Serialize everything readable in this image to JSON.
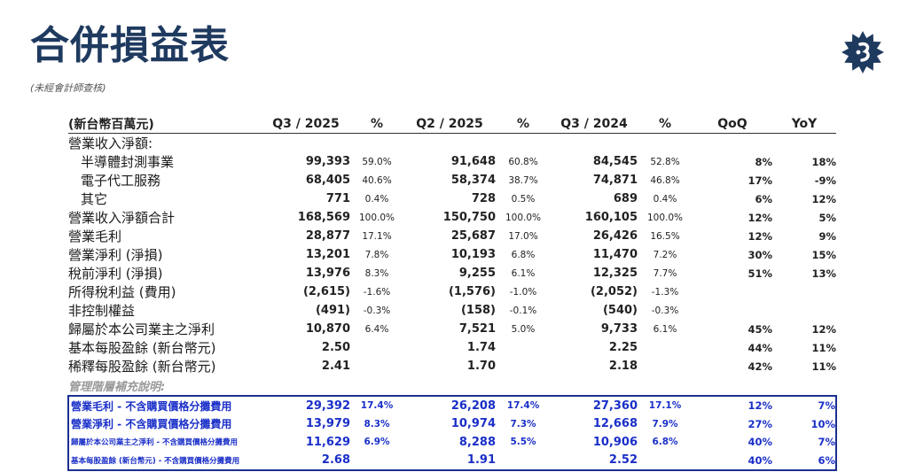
{
  "page": {
    "title": "合併損益表",
    "subtitle": "(未經會計師查核)"
  },
  "logo": {
    "icon": "company-logo-icon",
    "color": "#1f3a5f"
  },
  "table": {
    "headers": [
      "(新台幣百萬元)",
      "Q3 / 2025",
      "%",
      "Q2 / 2025",
      "%",
      "Q3 / 2024",
      "%",
      "QoQ",
      "YoY"
    ],
    "rows": [
      {
        "label": "營業收入淨額:",
        "indent": false,
        "cells": [
          "",
          "",
          "",
          "",
          "",
          "",
          "",
          ""
        ]
      },
      {
        "label": "半導體封測事業",
        "indent": true,
        "cells": [
          "99,393",
          "59.0%",
          "91,648",
          "60.8%",
          "84,545",
          "52.8%",
          "8%",
          "18%"
        ]
      },
      {
        "label": "電子代工服務",
        "indent": true,
        "cells": [
          "68,405",
          "40.6%",
          "58,374",
          "38.7%",
          "74,871",
          "46.8%",
          "17%",
          "-9%"
        ]
      },
      {
        "label": "其它",
        "indent": true,
        "cells": [
          "771",
          "0.4%",
          "728",
          "0.5%",
          "689",
          "0.4%",
          "6%",
          "12%"
        ]
      },
      {
        "label": "營業收入淨額合計",
        "indent": false,
        "cells": [
          "168,569",
          "100.0%",
          "150,750",
          "100.0%",
          "160,105",
          "100.0%",
          "12%",
          "5%"
        ]
      },
      {
        "label": "營業毛利",
        "indent": false,
        "cells": [
          "28,877",
          "17.1%",
          "25,687",
          "17.0%",
          "26,426",
          "16.5%",
          "12%",
          "9%"
        ]
      },
      {
        "label": "營業淨利 (淨損)",
        "indent": false,
        "cells": [
          "13,201",
          "7.8%",
          "10,193",
          "6.8%",
          "11,470",
          "7.2%",
          "30%",
          "15%"
        ]
      },
      {
        "label": "稅前淨利 (淨損)",
        "indent": false,
        "cells": [
          "13,976",
          "8.3%",
          "9,255",
          "6.1%",
          "12,325",
          "7.7%",
          "51%",
          "13%"
        ]
      },
      {
        "label": "所得稅利益 (費用)",
        "indent": false,
        "cells": [
          "(2,615)",
          "-1.6%",
          "(1,576)",
          "-1.0%",
          "(2,052)",
          "-1.3%",
          "",
          ""
        ]
      },
      {
        "label": "非控制權益",
        "indent": false,
        "cells": [
          "(491)",
          "-0.3%",
          "(158)",
          "-0.1%",
          "(540)",
          "-0.3%",
          "",
          ""
        ]
      },
      {
        "label": "歸屬於本公司業主之淨利",
        "indent": false,
        "cells": [
          "10,870",
          "6.4%",
          "7,521",
          "5.0%",
          "9,733",
          "6.1%",
          "45%",
          "12%"
        ]
      },
      {
        "label": "基本每股盈餘 (新台幣元)",
        "indent": false,
        "cells": [
          "2.50",
          "",
          "1.74",
          "",
          "2.25",
          "",
          "44%",
          "11%"
        ]
      },
      {
        "label": "稀釋每股盈餘 (新台幣元)",
        "indent": false,
        "cells": [
          "2.41",
          "",
          "1.70",
          "",
          "2.18",
          "",
          "42%",
          "11%"
        ]
      }
    ],
    "mgmt_label": "管理階層補充說明:",
    "mgmt_rows": [
      {
        "label": "營業毛利 - 不含購買價格分攤費用",
        "small": false,
        "cells": [
          "29,392",
          "17.4%",
          "26,208",
          "17.4%",
          "27,360",
          "17.1%",
          "12%",
          "7%"
        ]
      },
      {
        "label": "營業淨利 - 不含購買價格分攤費用",
        "small": false,
        "cells": [
          "13,979",
          "8.3%",
          "10,974",
          "7.3%",
          "12,668",
          "7.9%",
          "27%",
          "10%"
        ]
      },
      {
        "label": "歸屬於本公司業主之淨利 - 不含購買價格分攤費用",
        "small": true,
        "cells": [
          "11,629",
          "6.9%",
          "8,288",
          "5.5%",
          "10,906",
          "6.8%",
          "40%",
          "7%"
        ]
      },
      {
        "label": "基本每股盈餘 (新台幣元) - 不含購買價格分攤費用",
        "small": true,
        "cells": [
          "2.68",
          "",
          "1.91",
          "",
          "2.52",
          "",
          "40%",
          "6%"
        ]
      }
    ]
  },
  "colors": {
    "title": "#1f3a5f",
    "negative": "#e00000",
    "supplement": "#1a2fc8",
    "box_border": "#1c2f8f"
  }
}
